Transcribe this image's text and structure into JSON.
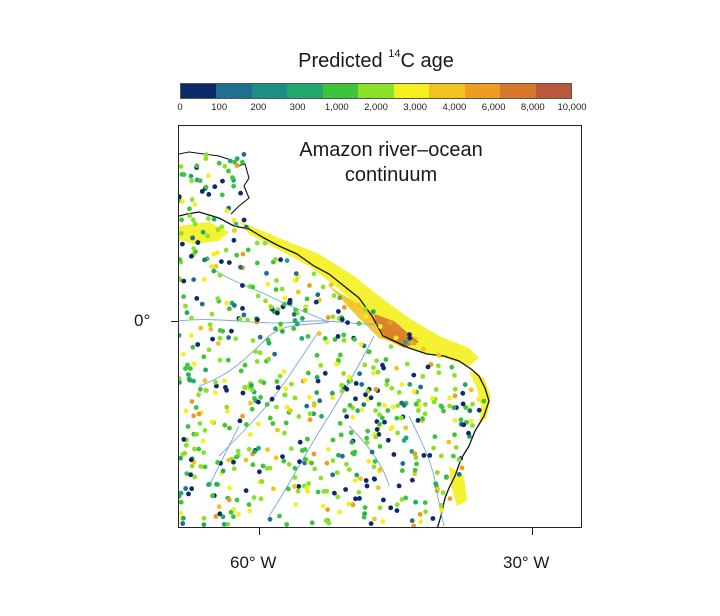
{
  "legend": {
    "title_main": "Predicted ",
    "title_sup": "14",
    "title_rest": "C age",
    "ticks": [
      "0",
      "100",
      "200",
      "300",
      "1,000",
      "2,000",
      "3,000",
      "4,000",
      "6,000",
      "8,000",
      "10,000"
    ],
    "colors": [
      "#0d2a6b",
      "#1f6f8e",
      "#1a8f82",
      "#22a86a",
      "#3ec43b",
      "#8be02a",
      "#f4ef1d",
      "#f2c21d",
      "#ef9c23",
      "#d8782c",
      "#b9583b"
    ]
  },
  "map": {
    "caption_line1": "Amazon river–ocean",
    "caption_line2": "continuum",
    "x_axis_ticks": [
      "60° W",
      "30° W"
    ],
    "y_axis_ticks": [
      "0°"
    ],
    "coast_color": "#111111",
    "river_color": "#7aa7d6"
  }
}
